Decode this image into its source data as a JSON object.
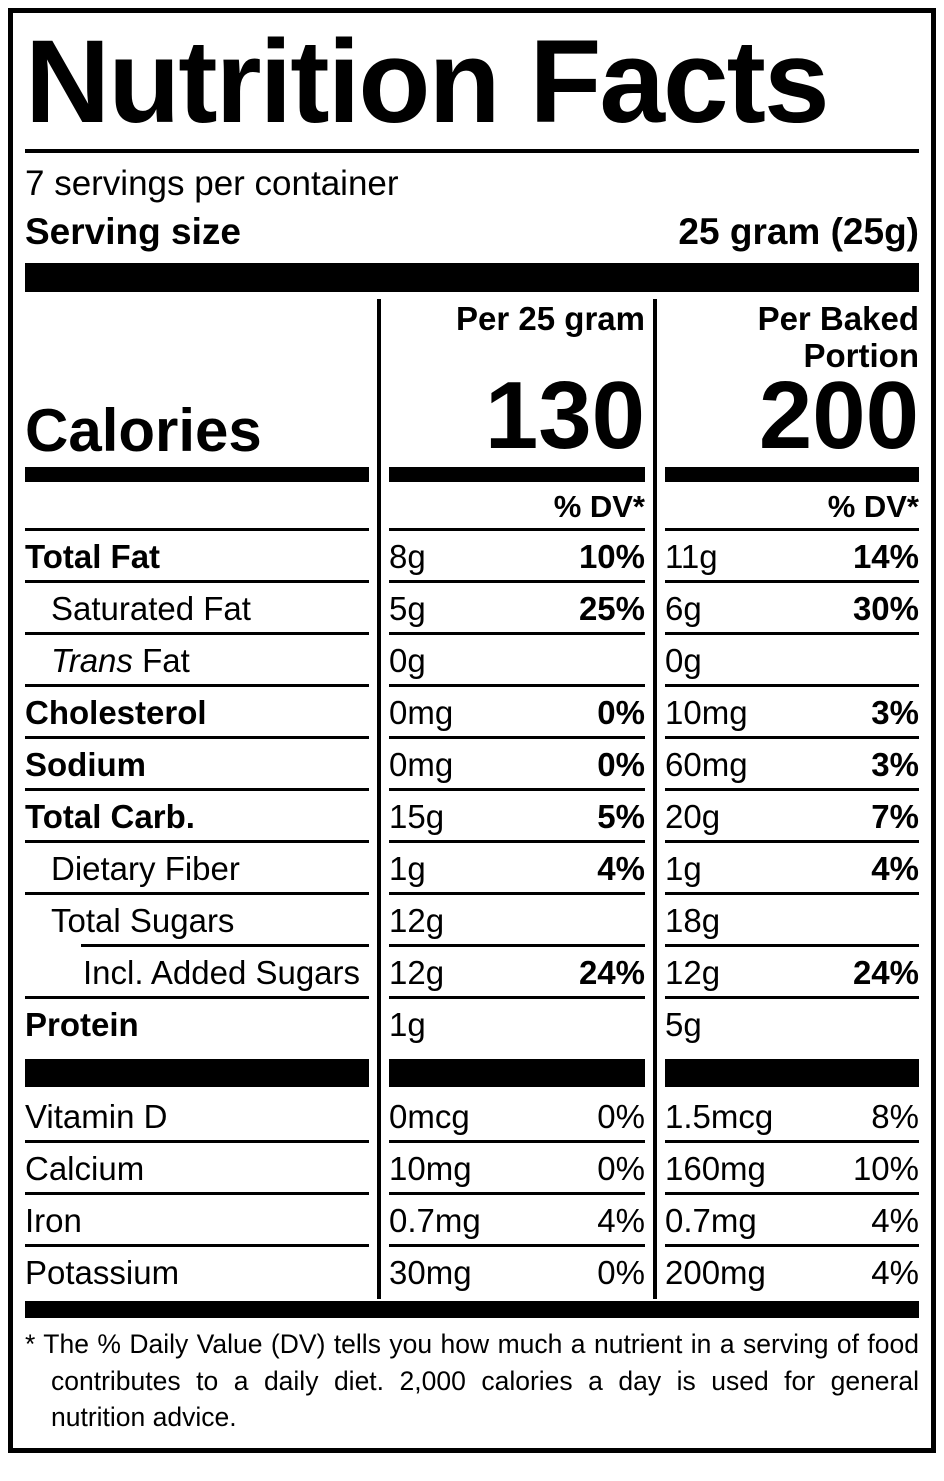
{
  "label": {
    "title": "Nutrition Facts",
    "servings_per_container": "7 servings per container",
    "serving_size_label": "Serving size",
    "serving_size_value": "25 gram (25g)",
    "column_headers": {
      "per_serving": "Per 25 gram",
      "per_baked_portion": "Per Baked Portion"
    },
    "calories": {
      "label": "Calories",
      "per_serving": "130",
      "per_baked_portion": "200"
    },
    "dv_header_col2": "% DV*",
    "dv_header_col3": "% DV*",
    "footnote": "* The % Daily Value (DV) tells you how much a nutrient in a serving of food contributes to a daily diet. 2,000 calories a day is used for general nutrition advice.",
    "text_color": "#000000",
    "background_color": "#ffffff"
  },
  "nutrients": [
    {
      "name": "Total Fat",
      "amount1": "8g",
      "dv1": "10%",
      "amount2": "11g",
      "dv2": "14%"
    },
    {
      "name": "Saturated Fat",
      "amount1": "5g",
      "dv1": "25%",
      "amount2": "6g",
      "dv2": "30%"
    },
    {
      "name_italic": "Trans",
      "name": "Fat",
      "amount1": "0g",
      "dv1": "",
      "amount2": "0g",
      "dv2": ""
    },
    {
      "name": "Cholesterol",
      "amount1": "0mg",
      "dv1": "0%",
      "amount2": "10mg",
      "dv2": "3%"
    },
    {
      "name": "Sodium",
      "amount1": "0mg",
      "dv1": "0%",
      "amount2": "60mg",
      "dv2": "3%"
    },
    {
      "name": "Total Carb.",
      "amount1": "15g",
      "dv1": "5%",
      "amount2": "20g",
      "dv2": "7%"
    },
    {
      "name": "Dietary Fiber",
      "amount1": "1g",
      "dv1": "4%",
      "amount2": "1g",
      "dv2": "4%"
    },
    {
      "name": "Total Sugars",
      "amount1": "12g",
      "dv1": "",
      "amount2": "18g",
      "dv2": ""
    },
    {
      "name": "Incl. Added Sugars",
      "amount1": "12g",
      "dv1": "24%",
      "amount2": "12g",
      "dv2": "24%"
    },
    {
      "name": "Protein",
      "amount1": "1g",
      "dv1": "",
      "amount2": "5g",
      "dv2": ""
    }
  ],
  "vitamins": [
    {
      "name": "Vitamin D",
      "amount1": "0mcg",
      "dv1": "0%",
      "amount2": "1.5mcg",
      "dv2": "8%"
    },
    {
      "name": "Calcium",
      "amount1": "10mg",
      "dv1": "0%",
      "amount2": "160mg",
      "dv2": "10%"
    },
    {
      "name": "Iron",
      "amount1": "0.7mg",
      "dv1": "4%",
      "amount2": "0.7mg",
      "dv2": "4%"
    },
    {
      "name": "Potassium",
      "amount1": "30mg",
      "dv1": "0%",
      "amount2": "200mg",
      "dv2": "4%"
    }
  ]
}
